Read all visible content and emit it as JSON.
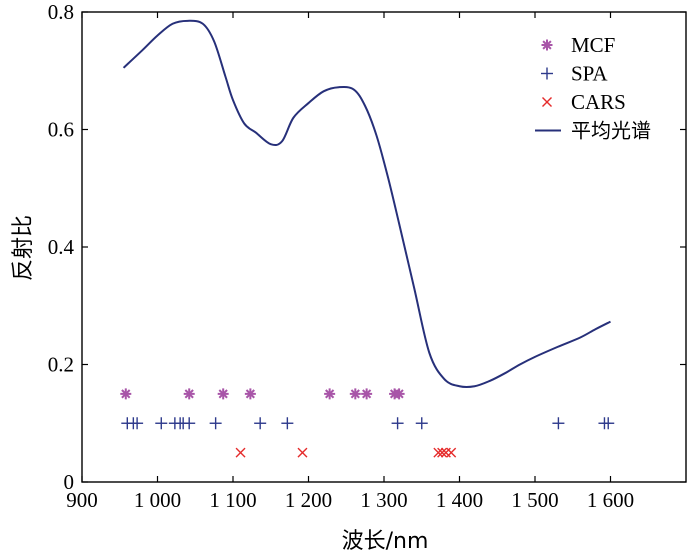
{
  "chart_data": {
    "type": "line+scatter",
    "title": "",
    "xlabel": "波长/nm",
    "ylabel": "反射比",
    "xlim": [
      900,
      1700
    ],
    "ylim": [
      0,
      0.8
    ],
    "x_ticks": [
      900,
      1000,
      1100,
      1200,
      1300,
      1400,
      1500,
      1600
    ],
    "x_tick_labels": [
      "900",
      "1 000",
      "1 100",
      "1 200",
      "1 300",
      "1 400",
      "1 500",
      "1 600"
    ],
    "y_ticks": [
      0,
      0.2,
      0.4,
      0.6,
      0.8
    ],
    "y_tick_labels": [
      "0",
      "0.2",
      "0.4",
      "0.6",
      "0.8"
    ],
    "legend": [
      "MCF",
      "SPA",
      "CARS",
      "平均光谱"
    ],
    "legend_position": "top-right",
    "colors": {
      "mcf": "#a855a8",
      "spa": "#2e3a8c",
      "cars": "#e52b2b",
      "spectrum": "#27307a"
    },
    "series": [
      {
        "name": "平均光谱",
        "kind": "line",
        "x": [
          955,
          980,
          1000,
          1020,
          1040,
          1060,
          1075,
          1090,
          1100,
          1115,
          1130,
          1150,
          1165,
          1180,
          1200,
          1220,
          1240,
          1260,
          1275,
          1290,
          1305,
          1320,
          1340,
          1360,
          1380,
          1400,
          1420,
          1440,
          1460,
          1480,
          1500,
          1530,
          1560,
          1580,
          1600
        ],
        "y": [
          0.705,
          0.735,
          0.76,
          0.78,
          0.785,
          0.78,
          0.75,
          0.69,
          0.65,
          0.61,
          0.595,
          0.575,
          0.58,
          0.62,
          0.645,
          0.665,
          0.672,
          0.668,
          0.64,
          0.59,
          0.52,
          0.44,
          0.33,
          0.22,
          0.175,
          0.163,
          0.163,
          0.172,
          0.185,
          0.2,
          0.213,
          0.23,
          0.246,
          0.26,
          0.273
        ]
      },
      {
        "name": "MCF",
        "kind": "scatter",
        "marker": "asterisk",
        "x": [
          958,
          1042,
          1087,
          1123,
          1228,
          1262,
          1277,
          1314,
          1320
        ],
        "y": [
          0.15,
          0.15,
          0.15,
          0.15,
          0.15,
          0.15,
          0.15,
          0.15,
          0.15
        ]
      },
      {
        "name": "SPA",
        "kind": "scatter",
        "marker": "plus",
        "x": [
          960,
          968,
          973,
          1005,
          1023,
          1030,
          1034,
          1042,
          1077,
          1136,
          1172,
          1318,
          1350,
          1531,
          1592,
          1597
        ],
        "y": [
          0.1,
          0.1,
          0.1,
          0.1,
          0.1,
          0.1,
          0.1,
          0.1,
          0.1,
          0.1,
          0.1,
          0.1,
          0.1,
          0.1,
          0.1,
          0.1
        ]
      },
      {
        "name": "CARS",
        "kind": "scatter",
        "marker": "x",
        "x": [
          1110,
          1192,
          1372,
          1377,
          1382,
          1389
        ],
        "y": [
          0.05,
          0.05,
          0.05,
          0.05,
          0.05,
          0.05
        ]
      }
    ]
  }
}
